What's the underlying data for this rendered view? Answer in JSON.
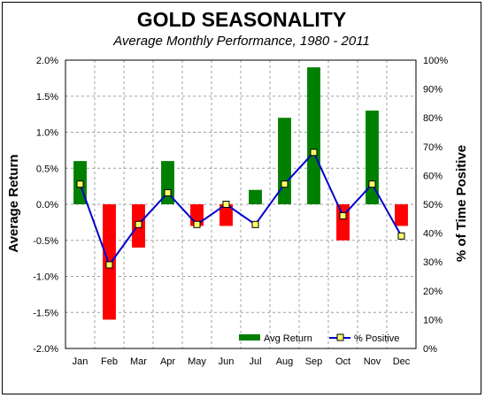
{
  "chart_data": {
    "type": "bar",
    "title": "GOLD SEASONALITY",
    "subtitle": "Average Monthly Performance, 1980 - 2011",
    "ylabel": "Average Return",
    "y2label": "% of Time Positive",
    "categories": [
      "Jan",
      "Feb",
      "Mar",
      "Apr",
      "May",
      "Jun",
      "Jul",
      "Aug",
      "Sep",
      "Oct",
      "Nov",
      "Dec"
    ],
    "y_ticks": [
      "2.0%",
      "1.5%",
      "1.0%",
      "0.5%",
      "0.0%",
      "-0.5%",
      "-1.0%",
      "-1.5%",
      "-2.0%"
    ],
    "y2_ticks": [
      "100%",
      "90%",
      "80%",
      "70%",
      "60%",
      "50%",
      "40%",
      "30%",
      "20%",
      "10%",
      "0%"
    ],
    "ylim": [
      -2.0,
      2.0
    ],
    "y2lim": [
      0,
      100
    ],
    "grid": true,
    "legend_position": "bottom-right",
    "series": [
      {
        "name": "Avg Return",
        "type": "bar",
        "axis": "left",
        "values": [
          0.6,
          -1.6,
          -0.6,
          0.6,
          -0.3,
          -0.3,
          0.2,
          1.2,
          1.9,
          -0.5,
          1.3,
          -0.3
        ]
      },
      {
        "name": "% Positive",
        "type": "line",
        "axis": "right",
        "values": [
          57,
          29,
          43,
          54,
          43,
          50,
          43,
          57,
          68,
          46,
          57,
          39
        ]
      }
    ],
    "colors": {
      "positive_bar": "#008000",
      "negative_bar": "#ff0000",
      "line": "#0000cc",
      "marker_fill": "#ffff66"
    }
  }
}
